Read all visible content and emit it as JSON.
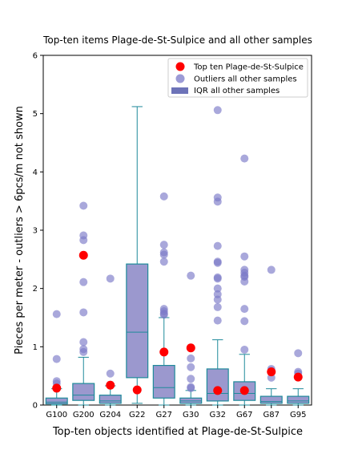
{
  "chart_data": {
    "type": "box",
    "title": "Top-ten items Plage-de-St-Sulpice and all other samples",
    "xlabel": "Top-ten objects identified at Plage-de-St-Sulpice",
    "ylabel": "Pieces per meter - outliers > 6pcs/m not shown",
    "ylim": [
      0,
      6
    ],
    "yticks": [
      0,
      1,
      2,
      3,
      4,
      5,
      6
    ],
    "categories": [
      "G100",
      "G200",
      "G204",
      "G22",
      "G27",
      "G30",
      "G32",
      "G67",
      "G87",
      "G95"
    ],
    "legend": {
      "position": "top-right",
      "entries": [
        "Top ten Plage-de-St-Sulpice",
        "Outliers all other samples",
        "IQR all other samples"
      ]
    },
    "colors": {
      "box_fill": "#8a86c6",
      "box_edge": "#1f8a9a",
      "outlier": "#7b7ac8",
      "highlight": "#ff0000"
    },
    "boxes": [
      {
        "category": "G100",
        "q1": 0.02,
        "median": 0.05,
        "q3": 0.12,
        "whisker_low": 0.0,
        "whisker_high": 0.28
      },
      {
        "category": "G200",
        "q1": 0.08,
        "median": 0.17,
        "q3": 0.37,
        "whisker_low": 0.0,
        "whisker_high": 0.82
      },
      {
        "category": "G204",
        "q1": 0.03,
        "median": 0.07,
        "q3": 0.17,
        "whisker_low": 0.0,
        "whisker_high": 0.33
      },
      {
        "category": "G22",
        "q1": 0.47,
        "median": 1.25,
        "q3": 2.42,
        "whisker_low": 0.03,
        "whisker_high": 5.12
      },
      {
        "category": "G27",
        "q1": 0.12,
        "median": 0.3,
        "q3": 0.68,
        "whisker_low": 0.0,
        "whisker_high": 1.5
      },
      {
        "category": "G30",
        "q1": 0.03,
        "median": 0.07,
        "q3": 0.12,
        "whisker_low": 0.0,
        "whisker_high": 0.25
      },
      {
        "category": "G32",
        "q1": 0.07,
        "median": 0.2,
        "q3": 0.62,
        "whisker_low": 0.0,
        "whisker_high": 1.12
      },
      {
        "category": "G67",
        "q1": 0.08,
        "median": 0.2,
        "q3": 0.4,
        "whisker_low": 0.0,
        "whisker_high": 0.87
      },
      {
        "category": "G87",
        "q1": 0.03,
        "median": 0.06,
        "q3": 0.15,
        "whisker_low": 0.0,
        "whisker_high": 0.28
      },
      {
        "category": "G95",
        "q1": 0.03,
        "median": 0.07,
        "q3": 0.15,
        "whisker_low": 0.0,
        "whisker_high": 0.28
      }
    ],
    "outliers": [
      {
        "category": "G100",
        "values": [
          1.56,
          0.79,
          0.41,
          0.37,
          0.3
        ]
      },
      {
        "category": "G200",
        "values": [
          3.42,
          2.91,
          2.83,
          2.57,
          2.11,
          1.59,
          1.08,
          0.96,
          0.91
        ]
      },
      {
        "category": "G204",
        "values": [
          2.17,
          0.54,
          0.35,
          0.34
        ]
      },
      {
        "category": "G22",
        "values": []
      },
      {
        "category": "G27",
        "values": [
          3.58,
          2.75,
          2.62,
          2.58,
          2.46,
          1.65,
          1.61,
          1.57,
          1.55
        ]
      },
      {
        "category": "G30",
        "values": [
          2.22,
          0.98,
          0.8,
          0.65,
          0.45,
          0.31,
          0.29
        ]
      },
      {
        "category": "G32",
        "values": [
          5.06,
          3.56,
          3.49,
          2.73,
          2.46,
          2.44,
          2.19,
          2.17,
          2.0,
          1.9,
          1.81,
          1.68,
          1.45
        ]
      },
      {
        "category": "G67",
        "values": [
          4.23,
          2.55,
          2.32,
          2.27,
          2.22,
          2.2,
          2.12,
          1.65,
          1.44,
          0.95
        ]
      },
      {
        "category": "G87",
        "values": [
          2.32,
          0.62,
          0.59,
          0.47
        ]
      },
      {
        "category": "G95",
        "values": [
          0.89,
          0.57,
          0.54
        ]
      }
    ],
    "top_ten_site": [
      {
        "category": "G100",
        "value": 0.29
      },
      {
        "category": "G200",
        "value": 2.57
      },
      {
        "category": "G204",
        "value": 0.34
      },
      {
        "category": "G22",
        "value": 0.26
      },
      {
        "category": "G27",
        "value": 0.91
      },
      {
        "category": "G30",
        "value": 0.98
      },
      {
        "category": "G32",
        "value": 0.25
      },
      {
        "category": "G67",
        "value": 0.25
      },
      {
        "category": "G87",
        "value": 0.57
      },
      {
        "category": "G95",
        "value": 0.48
      }
    ]
  }
}
